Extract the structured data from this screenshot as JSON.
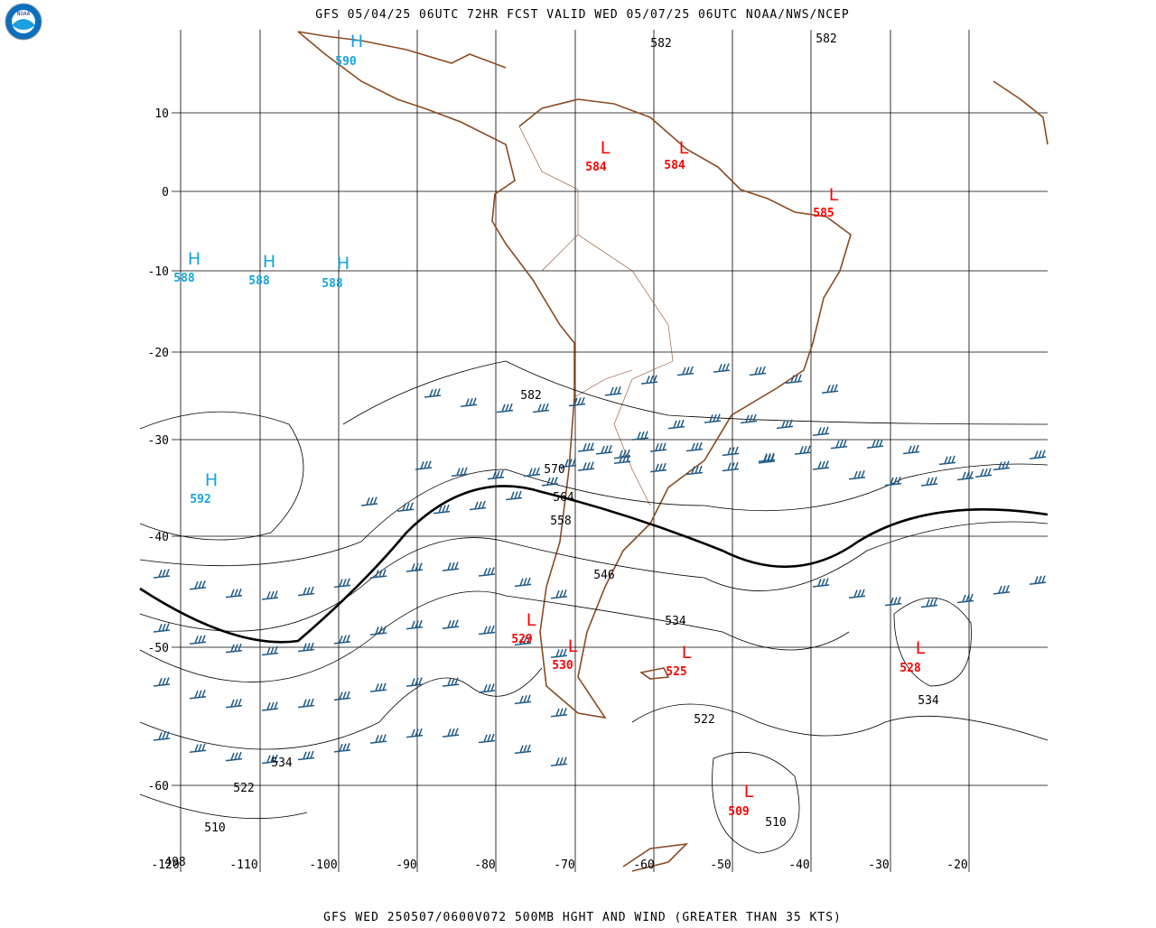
{
  "header": {
    "title": "GFS 05/04/25 06UTC 72HR FCST VALID WED 05/07/25 06UTC NOAA/NWS/NCEP",
    "logo": "NOAA"
  },
  "footer": {
    "caption": "GFS WED 250507/0600V072 500MB HGHT AND WIND (GREATER THAN 35 KTS)"
  },
  "map": {
    "lat_labels": [
      "10",
      "0",
      "-10",
      "-20",
      "-30",
      "-40",
      "-50",
      "-60"
    ],
    "lon_labels": [
      "-120",
      "-110",
      "-100",
      "-90",
      "-80",
      "-70",
      "-60",
      "-50",
      "-40",
      "-30",
      "-20"
    ],
    "centers": [
      {
        "symbol": "H",
        "value": "590"
      },
      {
        "symbol": "L",
        "value": "584"
      },
      {
        "symbol": "L",
        "value": "584"
      },
      {
        "symbol": "L",
        "value": "585"
      },
      {
        "symbol": "H",
        "value": "588"
      },
      {
        "symbol": "H",
        "value": "588"
      },
      {
        "symbol": "H",
        "value": "588"
      },
      {
        "symbol": "H",
        "value": "592"
      },
      {
        "symbol": "L",
        "value": "529"
      },
      {
        "symbol": "L",
        "value": "530"
      },
      {
        "symbol": "L",
        "value": "525"
      },
      {
        "symbol": "L",
        "value": "528"
      },
      {
        "symbol": "L",
        "value": "509"
      }
    ],
    "contour_labels": [
      "582",
      "582",
      "582",
      "570",
      "564",
      "558",
      "546",
      "534",
      "522",
      "534",
      "510",
      "534",
      "522",
      "510",
      "498"
    ]
  }
}
